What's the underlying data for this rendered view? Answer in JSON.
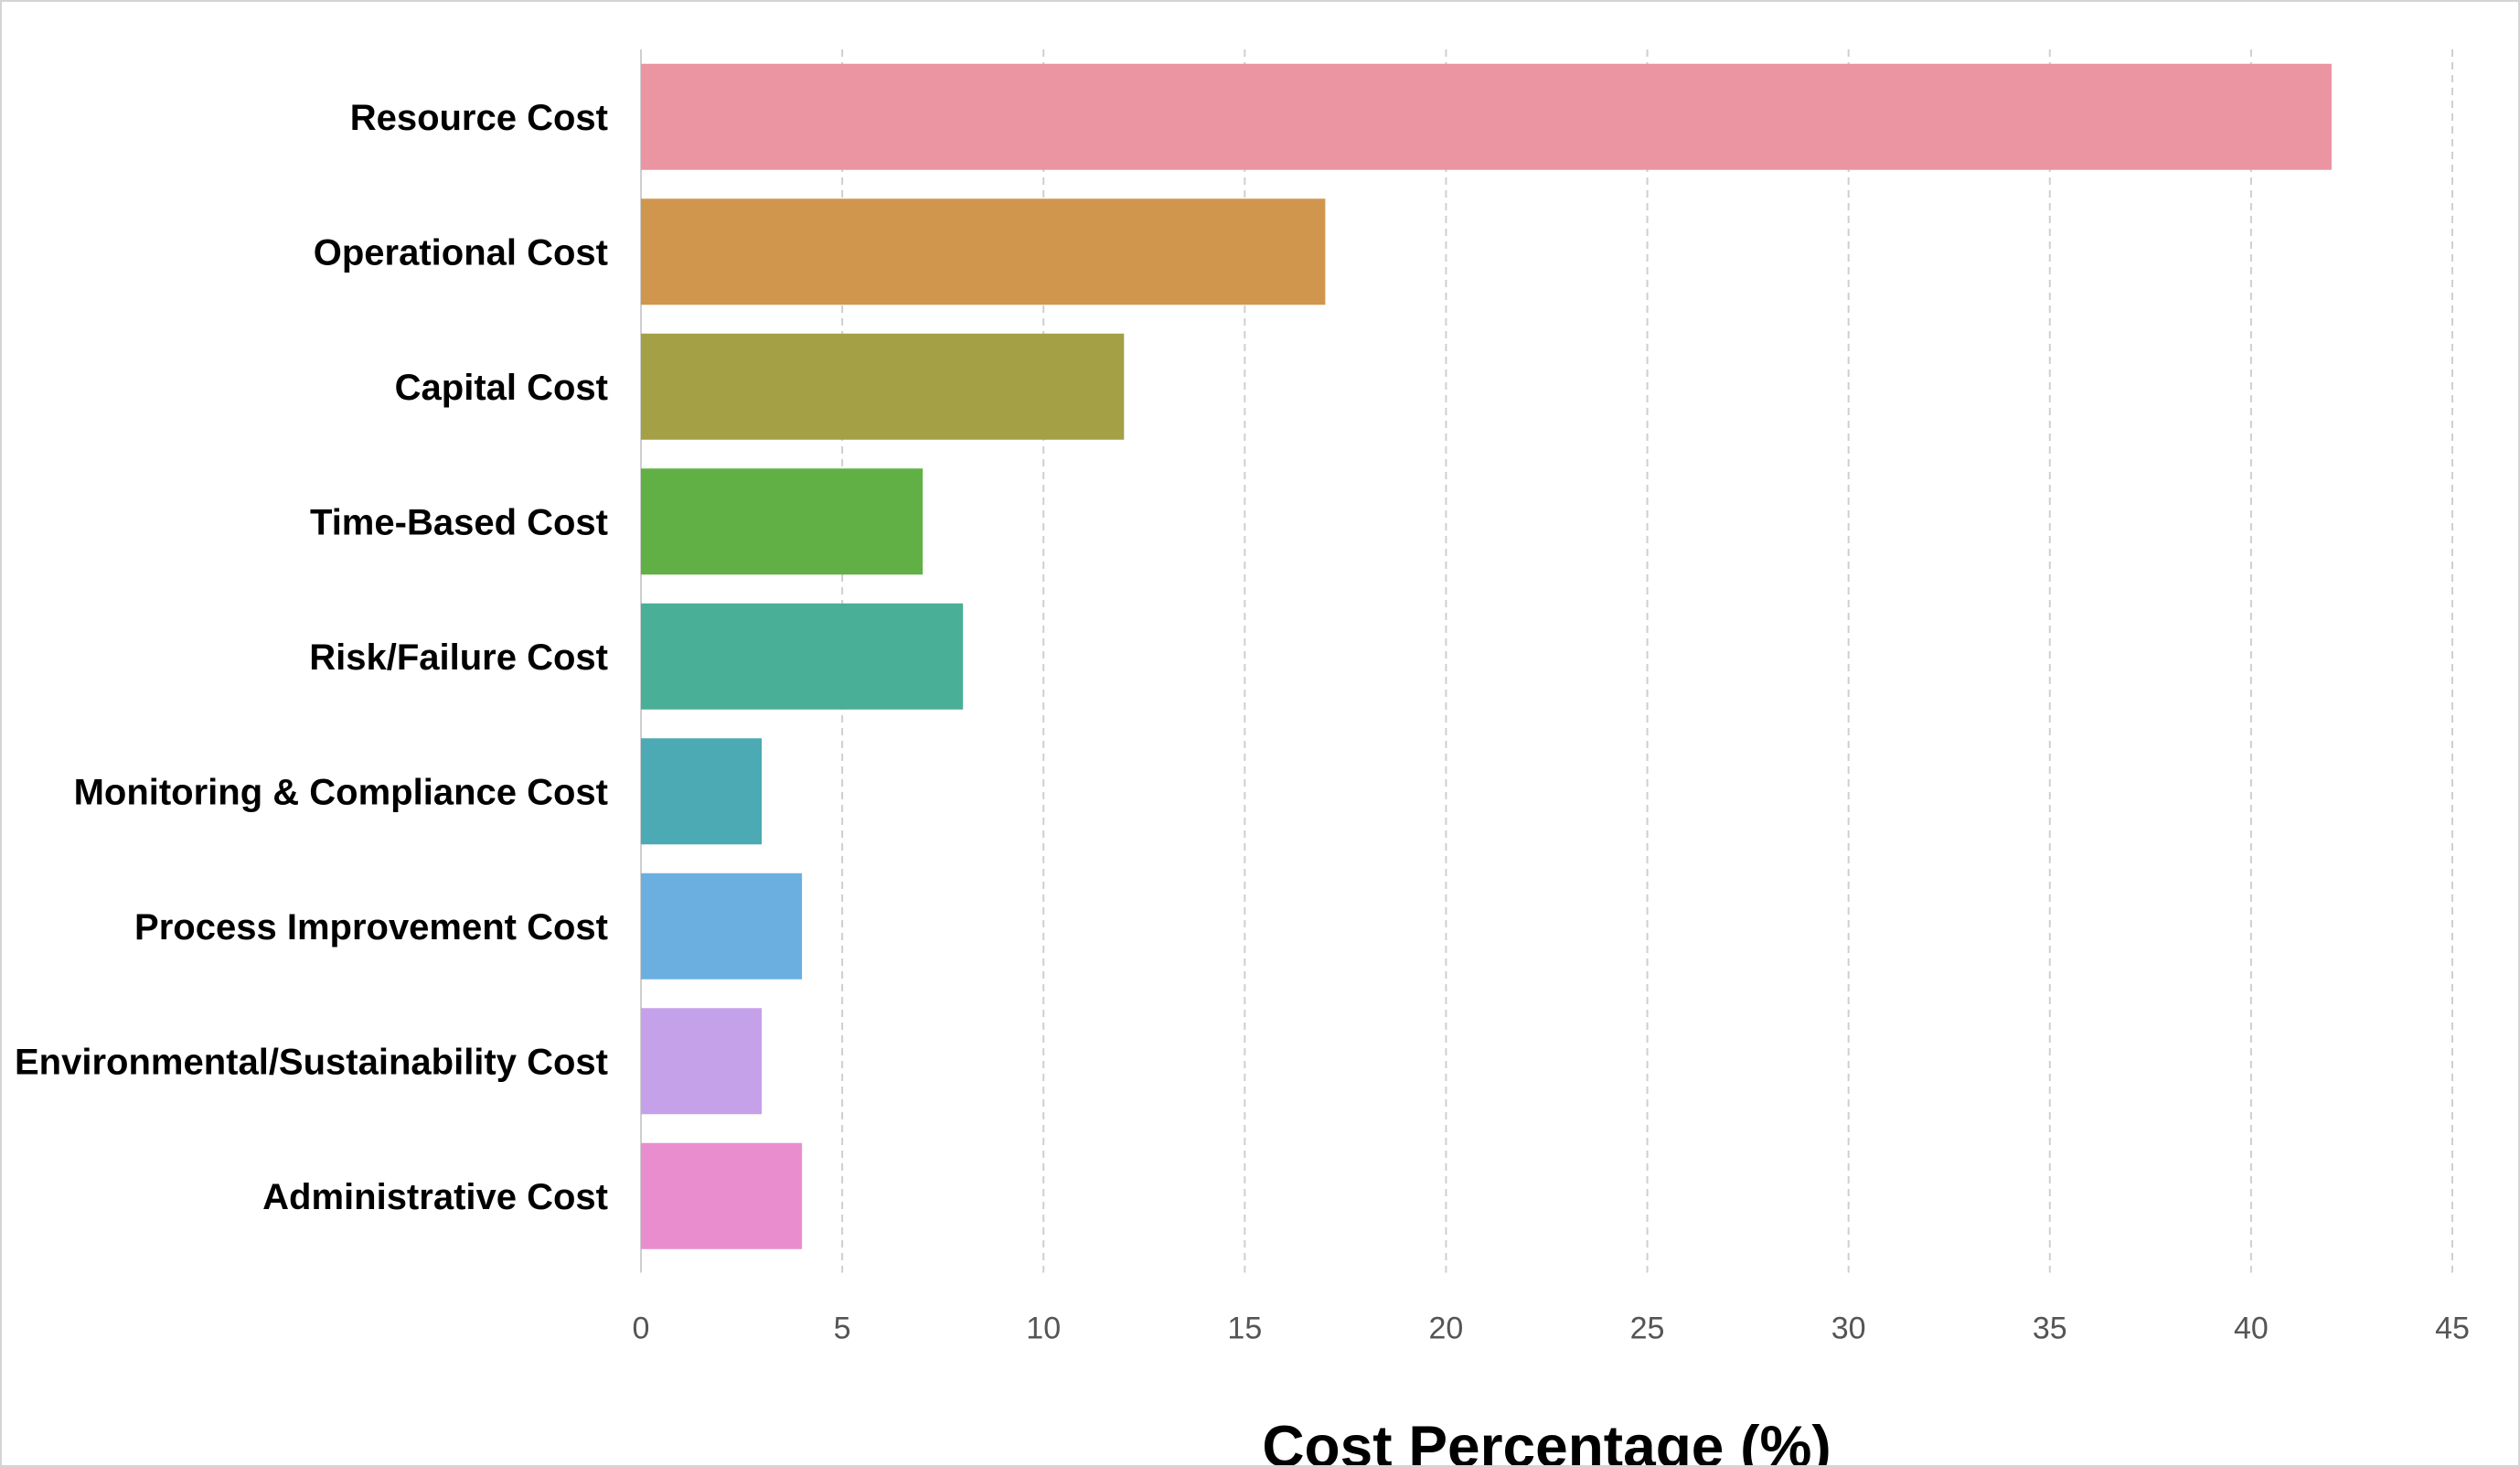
{
  "chart_data": {
    "type": "bar",
    "orientation": "horizontal",
    "categories": [
      "Resource Cost",
      "Operational Cost",
      "Capital Cost",
      "Time-Based Cost",
      "Risk/Failure Cost",
      "Monitoring & Compliance Cost",
      "Process Improvement Cost",
      "Environmental/Sustainability Cost",
      "Administrative Cost"
    ],
    "values": [
      42,
      17,
      12,
      7,
      8,
      3,
      4,
      3,
      4
    ],
    "colors": [
      "#EA95A1",
      "#D0964D",
      "#A3A045",
      "#61B046",
      "#49AF96",
      "#4BAAB3",
      "#6BAFE0",
      "#C5A1EA",
      "#E98DCF"
    ],
    "title": "",
    "xlabel": "Cost Percentage (%)",
    "ylabel": "",
    "xlim": [
      0,
      45
    ],
    "xticks": [
      0,
      5,
      10,
      15,
      20,
      25,
      30,
      35,
      40,
      45
    ],
    "grid": "vertical dashed",
    "legend": "none"
  }
}
